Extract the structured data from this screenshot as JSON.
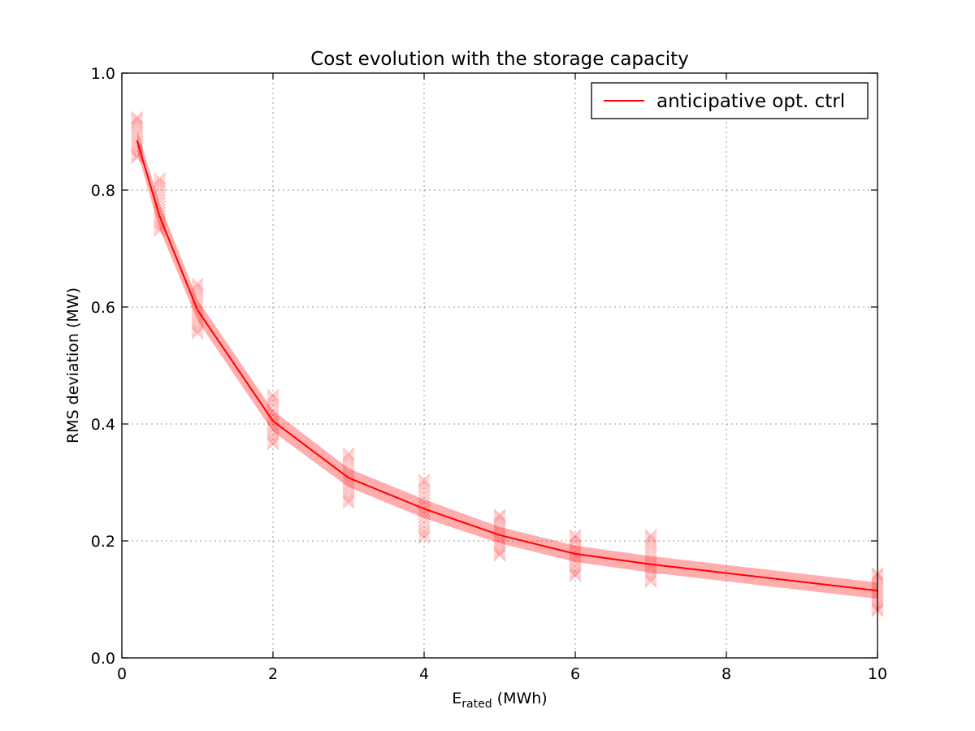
{
  "chart_data": {
    "type": "line",
    "title": "Cost evolution with the storage capacity",
    "xlabel_main": "E",
    "xlabel_sub": "rated",
    "xlabel_unit": " (MWh)",
    "ylabel": "RMS deviation (MW)",
    "xlim": [
      0,
      10
    ],
    "ylim": [
      0,
      1.0
    ],
    "xticks": [
      0,
      2,
      4,
      6,
      8,
      10
    ],
    "yticks": [
      0.0,
      0.2,
      0.4,
      0.6,
      0.8,
      1.0
    ],
    "xtick_labels": [
      "0",
      "2",
      "4",
      "6",
      "8",
      "10"
    ],
    "ytick_labels": [
      "0.0",
      "0.2",
      "0.4",
      "0.6",
      "0.8",
      "1.0"
    ],
    "grid": true,
    "legend_position": "top-right",
    "series": [
      {
        "name": "anticipative opt. ctrl",
        "color": "#ff0000",
        "x": [
          0.2,
          0.5,
          1,
          2,
          3,
          4,
          5,
          6,
          7,
          10
        ],
        "values": [
          0.885,
          0.755,
          0.595,
          0.405,
          0.308,
          0.255,
          0.21,
          0.178,
          0.16,
          0.115
        ],
        "band_halfwidth": [
          0.018,
          0.022,
          0.018,
          0.018,
          0.016,
          0.016,
          0.014,
          0.014,
          0.014,
          0.014
        ],
        "scatter_spread": [
          [
            0.855,
            0.925
          ],
          [
            0.73,
            0.82
          ],
          [
            0.555,
            0.64
          ],
          [
            0.365,
            0.45
          ],
          [
            0.265,
            0.35
          ],
          [
            0.205,
            0.305
          ],
          [
            0.175,
            0.245
          ],
          [
            0.14,
            0.21
          ],
          [
            0.13,
            0.21
          ],
          [
            0.08,
            0.145
          ]
        ]
      }
    ]
  }
}
